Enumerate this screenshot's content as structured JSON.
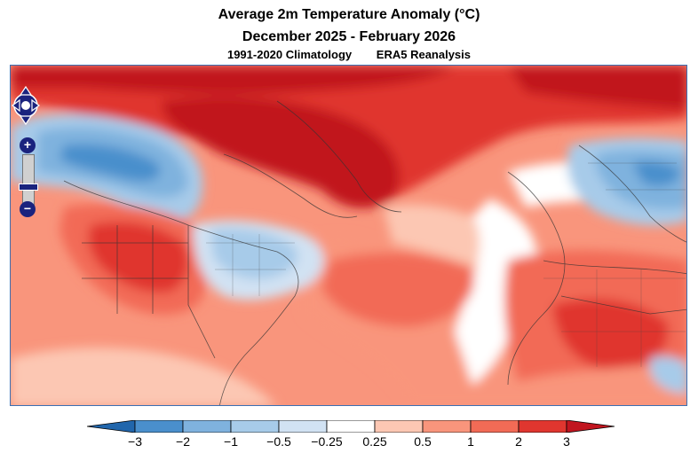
{
  "title": {
    "line1": "Average 2m Temperature Anomaly (°C)",
    "line2": "December 2025 - February 2026",
    "climatology": "1991-2020 Climatology",
    "dataset": "ERA5 Reanalysis"
  },
  "map": {
    "region": "North Atlantic sector: North America, Greenland, Europe, North Africa",
    "dominant_anomalies": [
      {
        "area": "Arctic / Greenland / Baffin Bay",
        "sign": "warm",
        "strength": "strong"
      },
      {
        "area": "Alaska / western Canada",
        "sign": "cold"
      },
      {
        "area": "Western & central United States",
        "sign": "warm",
        "strength": "strong"
      },
      {
        "area": "Eastern United States / Great Lakes",
        "sign": "cold"
      },
      {
        "area": "Scandinavia / northern Europe",
        "sign": "cold"
      },
      {
        "area": "Subtropical Atlantic",
        "sign": "warm"
      },
      {
        "area": "North Africa / Sahara",
        "sign": "warm",
        "strength": "strong"
      }
    ]
  },
  "navigation": {
    "zoom_in_label": "+",
    "zoom_out_label": "−"
  },
  "colorbar": {
    "ticks": [
      "−3",
      "−2",
      "−1",
      "−0.5",
      "−0.25",
      "0.25",
      "0.5",
      "1",
      "2",
      "3"
    ],
    "colors": [
      "#2166ac",
      "#4a8fcc",
      "#7fb2de",
      "#a7cbe9",
      "#d1e2f3",
      "#ffffff",
      "#fcc7b3",
      "#f9957c",
      "#f26b56",
      "#e0362f",
      "#c1151f"
    ]
  }
}
